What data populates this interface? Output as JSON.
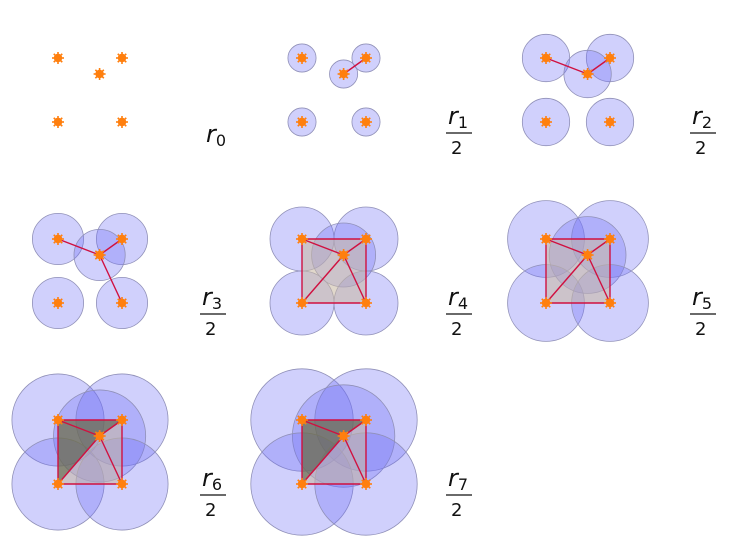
{
  "panels": [
    {
      "radius_index": "0",
      "fraction": false,
      "label_main": "r",
      "label_sub": "0",
      "label_den": "",
      "radius": 0,
      "edges": [],
      "triangles": []
    },
    {
      "radius_index": "1",
      "fraction": true,
      "label_main": "r",
      "label_sub": "1",
      "label_den": "2",
      "radius": 0.22,
      "edges": [
        [
          2,
          1
        ]
      ],
      "triangles": []
    },
    {
      "radius_index": "2",
      "fraction": true,
      "label_main": "r",
      "label_sub": "2",
      "label_den": "2",
      "radius": 0.37,
      "edges": [
        [
          0,
          2
        ],
        [
          2,
          1
        ]
      ],
      "triangles": []
    },
    {
      "radius_index": "3",
      "fraction": true,
      "label_main": "r",
      "label_sub": "3",
      "label_den": "2",
      "radius": 0.4,
      "edges": [
        [
          0,
          2
        ],
        [
          2,
          1
        ],
        [
          2,
          4
        ]
      ],
      "triangles": []
    },
    {
      "radius_index": "4",
      "fraction": true,
      "label_main": "r",
      "label_sub": "4",
      "label_den": "2",
      "radius": 0.5,
      "edges": [
        [
          0,
          1
        ],
        [
          1,
          4
        ],
        [
          4,
          3
        ],
        [
          3,
          0
        ],
        [
          0,
          2
        ],
        [
          2,
          1
        ],
        [
          2,
          4
        ],
        [
          2,
          3
        ]
      ],
      "triangles": [
        [
          0,
          1,
          2
        ],
        [
          1,
          2,
          4
        ],
        [
          0,
          2,
          3
        ],
        [
          2,
          3,
          4
        ]
      ]
    },
    {
      "radius_index": "5",
      "fraction": true,
      "label_main": "r",
      "label_sub": "5",
      "label_den": "2",
      "radius": 0.6,
      "edges": [
        [
          0,
          1
        ],
        [
          1,
          4
        ],
        [
          4,
          3
        ],
        [
          3,
          0
        ],
        [
          0,
          2
        ],
        [
          2,
          1
        ],
        [
          2,
          4
        ],
        [
          2,
          3
        ]
      ],
      "triangles": [
        [
          0,
          1,
          2
        ],
        [
          1,
          2,
          4
        ],
        [
          0,
          2,
          3
        ],
        [
          2,
          3,
          4
        ]
      ]
    },
    {
      "radius_index": "6",
      "fraction": true,
      "label_main": "r",
      "label_sub": "6",
      "label_den": "2",
      "radius": 0.72,
      "edges": [
        [
          0,
          1
        ],
        [
          1,
          4
        ],
        [
          4,
          3
        ],
        [
          3,
          0
        ],
        [
          0,
          2
        ],
        [
          2,
          1
        ],
        [
          2,
          4
        ],
        [
          2,
          3
        ]
      ],
      "triangles": [
        [
          0,
          1,
          2
        ],
        [
          1,
          2,
          4
        ],
        [
          0,
          2,
          3
        ],
        [
          2,
          3,
          4
        ]
      ]
    },
    {
      "radius_index": "7",
      "fraction": true,
      "label_main": "r",
      "label_sub": "7",
      "label_den": "2",
      "radius": 0.8,
      "edges": [
        [
          0,
          1
        ],
        [
          1,
          4
        ],
        [
          4,
          3
        ],
        [
          3,
          0
        ],
        [
          0,
          2
        ],
        [
          2,
          1
        ],
        [
          2,
          4
        ],
        [
          2,
          3
        ]
      ],
      "triangles": [
        [
          0,
          1,
          2
        ],
        [
          1,
          2,
          4
        ],
        [
          0,
          2,
          3
        ],
        [
          2,
          3,
          4
        ]
      ]
    }
  ],
  "points": [
    [
      0,
      1
    ],
    [
      1,
      1
    ],
    [
      0.65,
      0.75
    ],
    [
      0,
      0
    ],
    [
      1,
      0
    ]
  ],
  "colors": {
    "point": "#ff7f0e",
    "disk_fill": "#6e6ef5",
    "disk_stroke": "#9090b8",
    "edge": "#d01040",
    "triangle_fill": "#c8b8a0",
    "triangle_dark": "#6a6a40",
    "label": "#111111"
  }
}
